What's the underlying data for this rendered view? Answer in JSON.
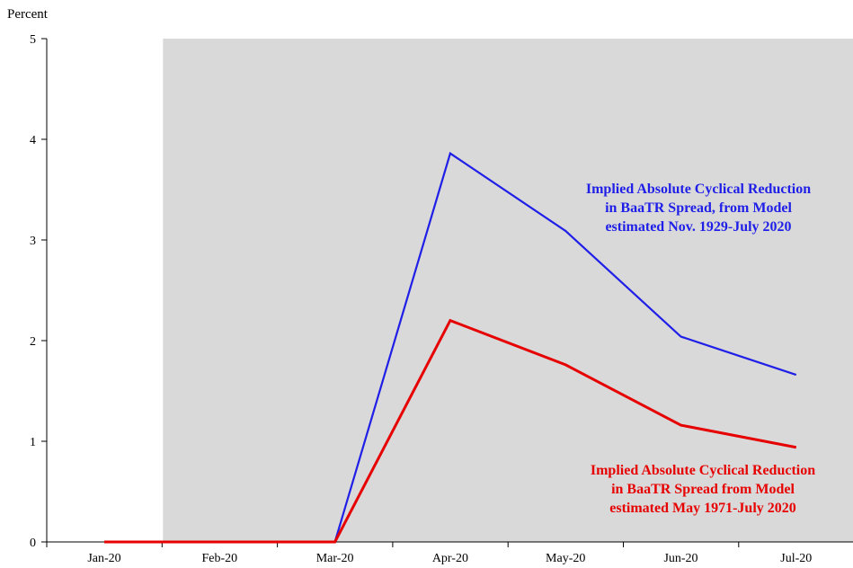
{
  "chart_data": {
    "type": "line",
    "ylabel": "Percent",
    "xlabel": "",
    "categories": [
      "Jan-20",
      "Feb-20",
      "Mar-20",
      "Apr-20",
      "May-20",
      "Jun-20",
      "Jul-20"
    ],
    "ylim": [
      0,
      5
    ],
    "yticks": [
      0,
      1,
      2,
      3,
      4,
      5
    ],
    "shaded_region": {
      "from_category": "Feb-20",
      "to_category": "Jul-20",
      "color": "#d9d9d9"
    },
    "series": [
      {
        "values": [
          0,
          0,
          0,
          3.86,
          3.09,
          2.04,
          1.66
        ],
        "color": "#1f1fe8"
      },
      {
        "values": [
          0,
          0,
          0,
          2.2,
          1.76,
          1.16,
          0.94
        ],
        "color": "#e60000"
      }
    ],
    "annotations": [
      {
        "lines": [
          "Implied Absolute Cyclical Reduction",
          "in BaaTR Spread, from Model",
          "estimated Nov. 1929-July 2020"
        ],
        "color": "#1f1fe8"
      },
      {
        "lines": [
          "Implied Absolute Cyclical Reduction",
          "in BaaTR Spread from Model",
          "estimated May 1971-July 2020"
        ],
        "color": "#e60000"
      }
    ]
  }
}
